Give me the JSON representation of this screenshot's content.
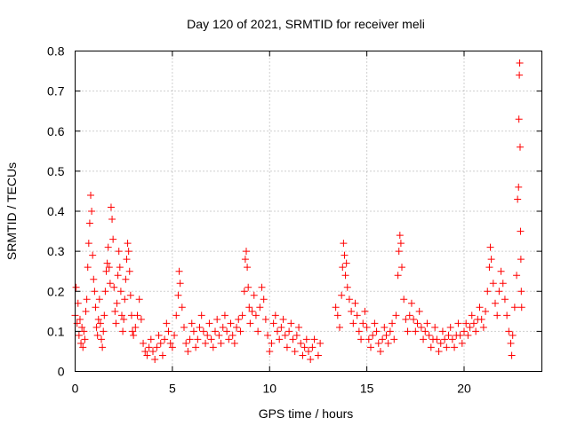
{
  "chart_data": {
    "type": "scatter",
    "title": "Day 120 of 2021, SRMTID for receiver meli",
    "xlabel": "GPS time / hours",
    "ylabel": "SRMTID / TECUs",
    "xlim": [
      0,
      24
    ],
    "ylim": [
      0,
      0.8
    ],
    "x_ticks": [
      0,
      5,
      10,
      15,
      20
    ],
    "x_tick_labels": [
      "0",
      "5",
      "10",
      "15",
      "20"
    ],
    "y_ticks": [
      0,
      0.1,
      0.2,
      0.3,
      0.4,
      0.5,
      0.6,
      0.7,
      0.8
    ],
    "y_tick_labels": [
      "0",
      "0.1",
      "0.2",
      "0.3",
      "0.4",
      "0.5",
      "0.6",
      "0.7",
      "0.8"
    ],
    "grid": true,
    "marker": "+",
    "series": [
      {
        "name": "SRMTID",
        "color": "#ff0000",
        "points": [
          [
            0.0,
            0.14
          ],
          [
            0.05,
            0.21
          ],
          [
            0.1,
            0.12
          ],
          [
            0.15,
            0.17
          ],
          [
            0.2,
            0.09
          ],
          [
            0.25,
            0.13
          ],
          [
            0.3,
            0.07
          ],
          [
            0.35,
            0.11
          ],
          [
            0.4,
            0.06
          ],
          [
            0.45,
            0.1
          ],
          [
            0.5,
            0.08
          ],
          [
            0.55,
            0.15
          ],
          [
            0.6,
            0.18
          ],
          [
            0.65,
            0.26
          ],
          [
            0.7,
            0.32
          ],
          [
            0.75,
            0.37
          ],
          [
            0.8,
            0.44
          ],
          [
            0.85,
            0.4
          ],
          [
            0.9,
            0.29
          ],
          [
            0.95,
            0.23
          ],
          [
            1.0,
            0.2
          ],
          [
            1.05,
            0.16
          ],
          [
            1.1,
            0.11
          ],
          [
            1.15,
            0.09
          ],
          [
            1.2,
            0.13
          ],
          [
            1.25,
            0.18
          ],
          [
            1.3,
            0.12
          ],
          [
            1.35,
            0.08
          ],
          [
            1.4,
            0.06
          ],
          [
            1.45,
            0.1
          ],
          [
            1.5,
            0.14
          ],
          [
            1.55,
            0.2
          ],
          [
            1.6,
            0.25
          ],
          [
            1.65,
            0.27
          ],
          [
            1.7,
            0.31
          ],
          [
            1.75,
            0.26
          ],
          [
            1.8,
            0.22
          ],
          [
            1.85,
            0.41
          ],
          [
            1.9,
            0.38
          ],
          [
            1.95,
            0.33
          ],
          [
            2.0,
            0.21
          ],
          [
            2.05,
            0.15
          ],
          [
            2.1,
            0.12
          ],
          [
            2.15,
            0.17
          ],
          [
            2.2,
            0.24
          ],
          [
            2.25,
            0.3
          ],
          [
            2.3,
            0.26
          ],
          [
            2.35,
            0.2
          ],
          [
            2.4,
            0.14
          ],
          [
            2.45,
            0.1
          ],
          [
            2.5,
            0.13
          ],
          [
            2.55,
            0.18
          ],
          [
            2.6,
            0.23
          ],
          [
            2.65,
            0.28
          ],
          [
            2.7,
            0.32
          ],
          [
            2.75,
            0.3
          ],
          [
            2.8,
            0.25
          ],
          [
            2.85,
            0.19
          ],
          [
            2.9,
            0.14
          ],
          [
            2.95,
            0.1
          ],
          [
            3.0,
            0.09
          ],
          [
            3.1,
            0.11
          ],
          [
            3.2,
            0.14
          ],
          [
            3.3,
            0.18
          ],
          [
            3.4,
            0.13
          ],
          [
            3.5,
            0.07
          ],
          [
            3.6,
            0.05
          ],
          [
            3.7,
            0.04
          ],
          [
            3.8,
            0.06
          ],
          [
            3.9,
            0.08
          ],
          [
            4.0,
            0.05
          ],
          [
            4.1,
            0.03
          ],
          [
            4.2,
            0.06
          ],
          [
            4.3,
            0.09
          ],
          [
            4.4,
            0.07
          ],
          [
            4.5,
            0.04
          ],
          [
            4.6,
            0.08
          ],
          [
            4.7,
            0.12
          ],
          [
            4.8,
            0.1
          ],
          [
            4.9,
            0.07
          ],
          [
            5.0,
            0.06
          ],
          [
            5.1,
            0.09
          ],
          [
            5.2,
            0.14
          ],
          [
            5.3,
            0.19
          ],
          [
            5.35,
            0.25
          ],
          [
            5.4,
            0.22
          ],
          [
            5.5,
            0.16
          ],
          [
            5.6,
            0.11
          ],
          [
            5.7,
            0.07
          ],
          [
            5.8,
            0.05
          ],
          [
            5.9,
            0.08
          ],
          [
            6.0,
            0.12
          ],
          [
            6.1,
            0.1
          ],
          [
            6.2,
            0.06
          ],
          [
            6.3,
            0.08
          ],
          [
            6.4,
            0.11
          ],
          [
            6.5,
            0.14
          ],
          [
            6.6,
            0.1
          ],
          [
            6.7,
            0.07
          ],
          [
            6.8,
            0.09
          ],
          [
            6.9,
            0.12
          ],
          [
            7.0,
            0.08
          ],
          [
            7.1,
            0.06
          ],
          [
            7.2,
            0.1
          ],
          [
            7.3,
            0.13
          ],
          [
            7.4,
            0.09
          ],
          [
            7.5,
            0.07
          ],
          [
            7.6,
            0.11
          ],
          [
            7.7,
            0.14
          ],
          [
            7.8,
            0.1
          ],
          [
            7.9,
            0.08
          ],
          [
            8.0,
            0.12
          ],
          [
            8.1,
            0.09
          ],
          [
            8.2,
            0.07
          ],
          [
            8.3,
            0.11
          ],
          [
            8.4,
            0.13
          ],
          [
            8.5,
            0.1
          ],
          [
            8.6,
            0.14
          ],
          [
            8.7,
            0.2
          ],
          [
            8.75,
            0.28
          ],
          [
            8.8,
            0.3
          ],
          [
            8.85,
            0.26
          ],
          [
            8.9,
            0.21
          ],
          [
            8.95,
            0.16
          ],
          [
            9.0,
            0.12
          ],
          [
            9.1,
            0.15
          ],
          [
            9.2,
            0.19
          ],
          [
            9.3,
            0.14
          ],
          [
            9.4,
            0.1
          ],
          [
            9.5,
            0.16
          ],
          [
            9.6,
            0.21
          ],
          [
            9.7,
            0.18
          ],
          [
            9.8,
            0.13
          ],
          [
            9.9,
            0.09
          ],
          [
            10.0,
            0.05
          ],
          [
            10.1,
            0.07
          ],
          [
            10.2,
            0.12
          ],
          [
            10.3,
            0.14
          ],
          [
            10.4,
            0.1
          ],
          [
            10.5,
            0.08
          ],
          [
            10.6,
            0.11
          ],
          [
            10.7,
            0.13
          ],
          [
            10.8,
            0.09
          ],
          [
            10.9,
            0.06
          ],
          [
            11.0,
            0.1
          ],
          [
            11.1,
            0.12
          ],
          [
            11.2,
            0.08
          ],
          [
            11.3,
            0.05
          ],
          [
            11.4,
            0.09
          ],
          [
            11.5,
            0.11
          ],
          [
            11.6,
            0.07
          ],
          [
            11.7,
            0.04
          ],
          [
            11.8,
            0.06
          ],
          [
            11.9,
            0.08
          ],
          [
            12.0,
            0.05
          ],
          [
            12.1,
            0.03
          ],
          [
            12.2,
            0.06
          ],
          [
            12.3,
            0.08
          ],
          [
            12.5,
            0.04
          ],
          [
            12.6,
            0.07
          ],
          [
            13.4,
            0.16
          ],
          [
            13.5,
            0.14
          ],
          [
            13.6,
            0.11
          ],
          [
            13.7,
            0.19
          ],
          [
            13.75,
            0.26
          ],
          [
            13.8,
            0.32
          ],
          [
            13.85,
            0.29
          ],
          [
            13.9,
            0.24
          ],
          [
            13.95,
            0.27
          ],
          [
            14.0,
            0.21
          ],
          [
            14.1,
            0.18
          ],
          [
            14.2,
            0.15
          ],
          [
            14.3,
            0.12
          ],
          [
            14.4,
            0.17
          ],
          [
            14.5,
            0.14
          ],
          [
            14.6,
            0.1
          ],
          [
            14.7,
            0.08
          ],
          [
            14.8,
            0.12
          ],
          [
            14.9,
            0.15
          ],
          [
            15.0,
            0.11
          ],
          [
            15.1,
            0.08
          ],
          [
            15.2,
            0.06
          ],
          [
            15.3,
            0.09
          ],
          [
            15.4,
            0.12
          ],
          [
            15.5,
            0.1
          ],
          [
            15.6,
            0.07
          ],
          [
            15.7,
            0.05
          ],
          [
            15.8,
            0.08
          ],
          [
            15.9,
            0.11
          ],
          [
            16.0,
            0.09
          ],
          [
            16.1,
            0.07
          ],
          [
            16.2,
            0.1
          ],
          [
            16.3,
            0.12
          ],
          [
            16.4,
            0.08
          ],
          [
            16.5,
            0.14
          ],
          [
            16.6,
            0.24
          ],
          [
            16.65,
            0.3
          ],
          [
            16.7,
            0.34
          ],
          [
            16.75,
            0.32
          ],
          [
            16.8,
            0.26
          ],
          [
            16.9,
            0.18
          ],
          [
            17.0,
            0.13
          ],
          [
            17.1,
            0.1
          ],
          [
            17.2,
            0.14
          ],
          [
            17.3,
            0.17
          ],
          [
            17.4,
            0.13
          ],
          [
            17.5,
            0.1
          ],
          [
            17.6,
            0.12
          ],
          [
            17.7,
            0.15
          ],
          [
            17.8,
            0.11
          ],
          [
            17.9,
            0.08
          ],
          [
            18.0,
            0.1
          ],
          [
            18.1,
            0.12
          ],
          [
            18.2,
            0.09
          ],
          [
            18.3,
            0.06
          ],
          [
            18.4,
            0.08
          ],
          [
            18.5,
            0.11
          ],
          [
            18.6,
            0.08
          ],
          [
            18.7,
            0.05
          ],
          [
            18.8,
            0.07
          ],
          [
            18.9,
            0.1
          ],
          [
            19.0,
            0.08
          ],
          [
            19.1,
            0.06
          ],
          [
            19.2,
            0.09
          ],
          [
            19.3,
            0.11
          ],
          [
            19.4,
            0.08
          ],
          [
            19.5,
            0.06
          ],
          [
            19.6,
            0.09
          ],
          [
            19.7,
            0.12
          ],
          [
            19.8,
            0.09
          ],
          [
            19.9,
            0.07
          ],
          [
            20.0,
            0.1
          ],
          [
            20.1,
            0.12
          ],
          [
            20.2,
            0.09
          ],
          [
            20.3,
            0.11
          ],
          [
            20.4,
            0.14
          ],
          [
            20.5,
            0.12
          ],
          [
            20.6,
            0.1
          ],
          [
            20.7,
            0.13
          ],
          [
            20.8,
            0.16
          ],
          [
            20.9,
            0.13
          ],
          [
            21.0,
            0.11
          ],
          [
            21.1,
            0.15
          ],
          [
            21.2,
            0.2
          ],
          [
            21.3,
            0.26
          ],
          [
            21.35,
            0.31
          ],
          [
            21.4,
            0.28
          ],
          [
            21.5,
            0.22
          ],
          [
            21.6,
            0.17
          ],
          [
            21.7,
            0.14
          ],
          [
            21.8,
            0.2
          ],
          [
            21.9,
            0.25
          ],
          [
            22.0,
            0.22
          ],
          [
            22.1,
            0.18
          ],
          [
            22.2,
            0.14
          ],
          [
            22.3,
            0.1
          ],
          [
            22.4,
            0.07
          ],
          [
            22.45,
            0.04
          ],
          [
            22.5,
            0.09
          ],
          [
            22.6,
            0.16
          ],
          [
            22.7,
            0.24
          ],
          [
            22.75,
            0.43
          ],
          [
            22.8,
            0.46
          ],
          [
            22.82,
            0.63
          ],
          [
            22.84,
            0.74
          ],
          [
            22.86,
            0.77
          ],
          [
            22.88,
            0.56
          ],
          [
            22.9,
            0.35
          ],
          [
            22.92,
            0.28
          ],
          [
            22.94,
            0.2
          ],
          [
            22.96,
            0.16
          ]
        ]
      }
    ]
  }
}
